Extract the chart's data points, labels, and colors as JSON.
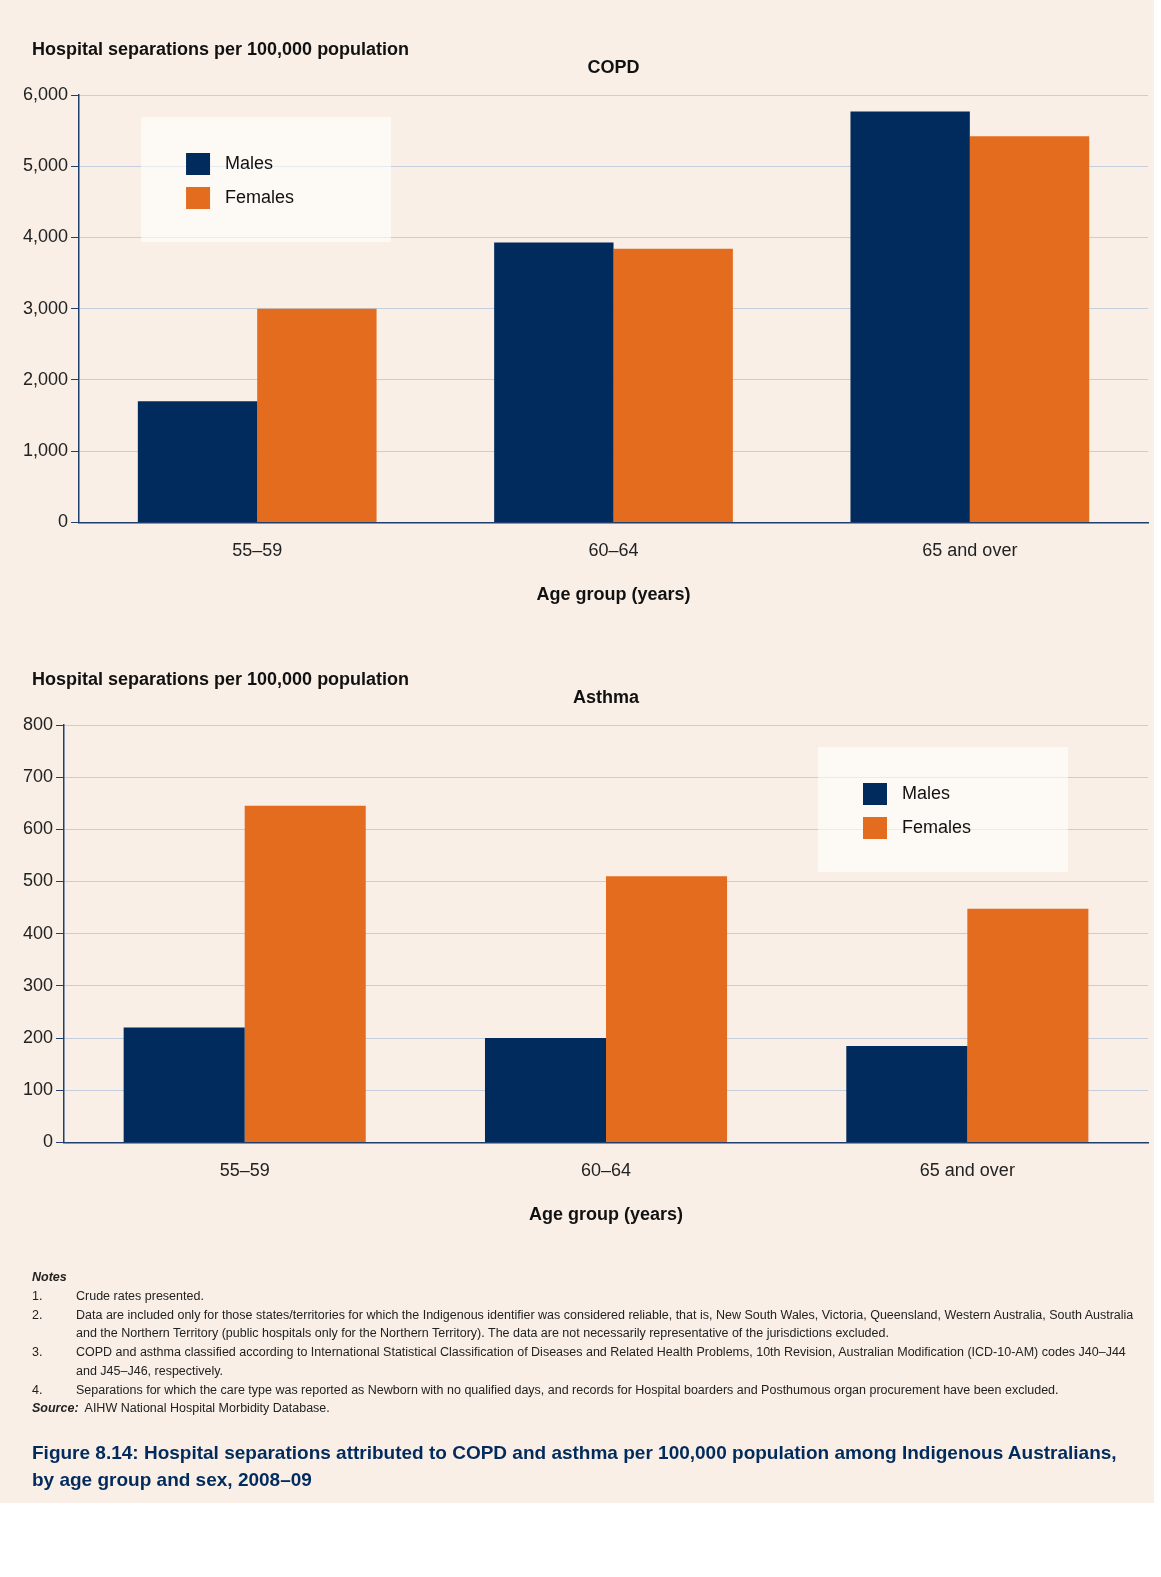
{
  "chart_data": [
    {
      "type": "bar",
      "title": "COPD",
      "xlabel": "Age group (years)",
      "ylabel": "Hospital separations per 100,000 population",
      "categories": [
        "55–59",
        "60–64",
        "65 and over"
      ],
      "series": [
        {
          "name": "Males",
          "color": "#002b5c",
          "values": [
            1700,
            3930,
            5770
          ]
        },
        {
          "name": "Females",
          "color": "#e36c1e",
          "values": [
            3000,
            3840,
            5420
          ]
        }
      ],
      "ylim": [
        0,
        6000
      ],
      "yticks": [
        0,
        {
          "value": 1000,
          "label": "1,000"
        },
        {
          "value": 2000,
          "label": "2,000"
        },
        {
          "value": 3000,
          "label": "3,000"
        },
        {
          "value": 4000,
          "label": "4,000"
        },
        {
          "value": 5000,
          "label": "5,000"
        },
        {
          "value": 6000,
          "label": "6,000"
        }
      ],
      "grid": "y",
      "legend": "top left"
    },
    {
      "type": "bar",
      "title": "Asthma",
      "xlabel": "Age group (years)",
      "ylabel": "Hospital separations per 100,000 population",
      "categories": [
        "55–59",
        "60–64",
        "65 and over"
      ],
      "series": [
        {
          "name": "Males",
          "color": "#002b5c",
          "values": [
            220,
            200,
            185
          ]
        },
        {
          "name": "Females",
          "color": "#e36c1e",
          "values": [
            645,
            510,
            448
          ]
        }
      ],
      "ylim": [
        0,
        800
      ],
      "yticks": [
        0,
        100,
        200,
        300,
        400,
        500,
        600,
        700,
        800
      ],
      "grid": "y",
      "legend": "top right",
      "annotations": [
        "Notes",
        "1.\tCrude rates presented.",
        "2.\tData are included only for those states/territories for which the Indigenous identifier was considered reliable, that is, New South Wales, Victoria, Queensland, Western Australia, South Australia and the Northern Territory (public hospitals only for the Northern Territory). The data are not necessarily representative of the jurisdictions excluded.",
        "3.\tCOPD and asthma classified according to International Statistical Classification of Diseases and Related Health Problems, 10th Revision, Australian Modification (ICD-10-AM) codes J40–J44 and J45–J46, respectively.",
        "4.\tSeparations for which the care type was reported as Newborn with no qualified days, and records for Hospital boarders and Posthumous organ procurement have been excluded.",
        "Source:\tAIHW National Hospital Morbidity Database.",
        "Figure 8.14: Hospital separations attributed to COPD and asthma per 100,000 population among Indigenous Australians, by age group and sex, 2008–09"
      ]
    }
  ]
}
